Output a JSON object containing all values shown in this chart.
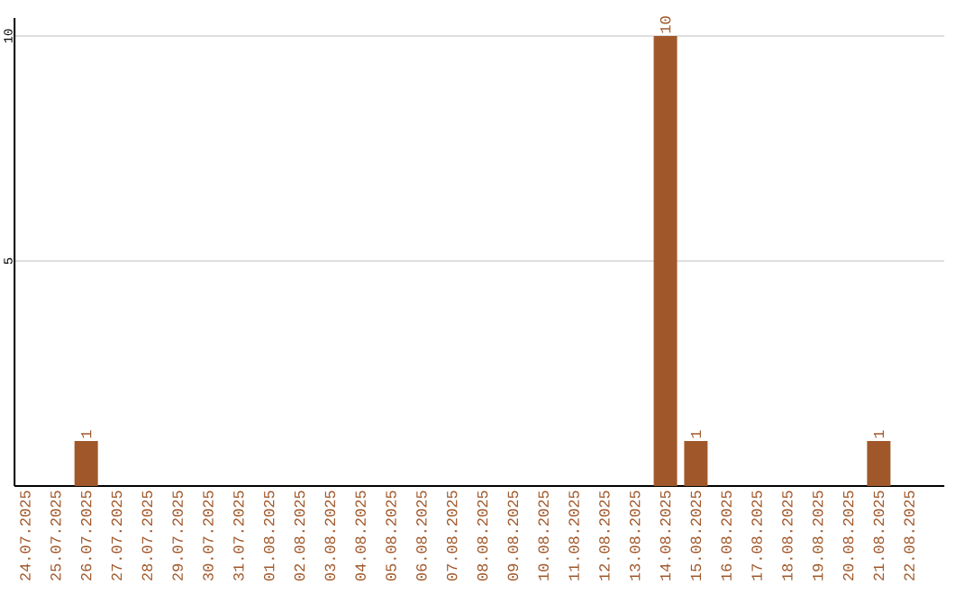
{
  "chart_data": {
    "type": "bar",
    "categories": [
      "24.07.2025",
      "25.07.2025",
      "26.07.2025",
      "27.07.2025",
      "28.07.2025",
      "29.07.2025",
      "30.07.2025",
      "31.07.2025",
      "01.08.2025",
      "02.08.2025",
      "03.08.2025",
      "04.08.2025",
      "05.08.2025",
      "06.08.2025",
      "07.08.2025",
      "08.08.2025",
      "09.08.2025",
      "10.08.2025",
      "11.08.2025",
      "12.08.2025",
      "13.08.2025",
      "14.08.2025",
      "15.08.2025",
      "16.08.2025",
      "17.08.2025",
      "18.08.2025",
      "19.08.2025",
      "20.08.2025",
      "21.08.2025",
      "22.08.2025"
    ],
    "values": [
      0,
      0,
      1,
      0,
      0,
      0,
      0,
      0,
      0,
      0,
      0,
      0,
      0,
      0,
      0,
      0,
      0,
      0,
      0,
      0,
      0,
      10,
      1,
      0,
      0,
      0,
      0,
      0,
      1,
      0
    ],
    "value_labels": [
      null,
      null,
      "1",
      null,
      null,
      null,
      null,
      null,
      null,
      null,
      null,
      null,
      null,
      null,
      null,
      null,
      null,
      null,
      null,
      null,
      null,
      "10",
      "1",
      null,
      null,
      null,
      null,
      null,
      "1",
      null
    ],
    "color": "#a0582a",
    "ylim": [
      0,
      10.4
    ],
    "yticks": [
      5,
      10
    ],
    "grid": "y"
  }
}
